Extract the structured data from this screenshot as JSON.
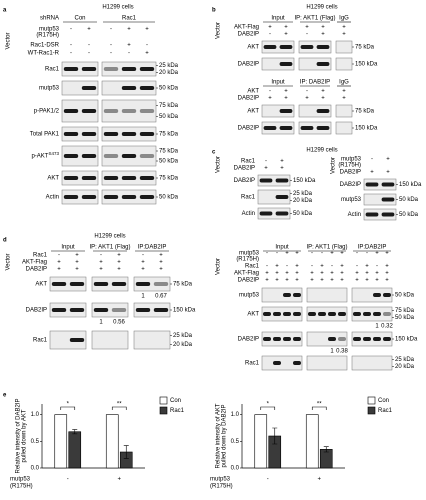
{
  "panels": [
    {
      "label": "a",
      "title": "H1299 cells",
      "vector": "Vector",
      "header": "shRNA",
      "groups": [
        "Con",
        "Rac1"
      ],
      "sign_rows": [
        {
          "name": "mutp53",
          "sub": "(R175H)",
          "signs": [
            "-",
            "+",
            "-",
            "+",
            "+"
          ]
        },
        {
          "name": "Rac1-DSR",
          "signs": [
            "-",
            "-",
            "-",
            "+",
            "-"
          ]
        },
        {
          "name": "WT-Rac1-R",
          "signs": [
            "-",
            "-",
            "-",
            "-",
            "+"
          ]
        }
      ],
      "blots": [
        {
          "name": "Rac1",
          "kda": [
            "25 kDa",
            "20 kDa"
          ]
        },
        {
          "name": "mutp53",
          "kda": [
            "50 kDa"
          ]
        },
        {
          "name": "p-PAK1/2",
          "kda": [
            "75 kDa",
            "50 kDa"
          ]
        },
        {
          "name": "Total PAK1",
          "kda": [
            "75 kDa"
          ]
        },
        {
          "name": "p-AKT",
          "sup": "S473",
          "kda": [
            "75 kDa",
            "50 kDa"
          ]
        },
        {
          "name": "AKT",
          "kda": [
            "75 kDa"
          ]
        },
        {
          "name": "Actin",
          "kda": [
            "50 kDa"
          ]
        }
      ]
    },
    {
      "label": "b",
      "title": "H1299 cells",
      "vector": "Vector",
      "groups": [
        "Input",
        "IP: AKT1 (Flag)",
        "IgG"
      ],
      "sign_rows": [
        {
          "name": "AKT-Flag",
          "signs": [
            "+",
            "+",
            "+",
            "+",
            "+"
          ]
        },
        {
          "name": "DAB2IP",
          "signs": [
            "-",
            "+",
            "-",
            "+",
            "+"
          ]
        }
      ],
      "blots": [
        {
          "name": "AKT",
          "kda": [
            "75 kDa"
          ]
        },
        {
          "name": "DAB2IP",
          "kda": [
            "150 kDa"
          ]
        }
      ]
    },
    {
      "groups": [
        "Input",
        "IP: DAB2IP",
        "IgG"
      ],
      "sign_rows": [
        {
          "name": "AKT",
          "signs": [
            "-",
            "+",
            "-",
            "+",
            "+"
          ]
        },
        {
          "name": "DAB2IP",
          "signs": [
            "+",
            "+",
            "+",
            "+",
            "+"
          ]
        }
      ],
      "blots": [
        {
          "name": "AKT",
          "kda": [
            "75 kDa"
          ]
        },
        {
          "name": "DAB2IP",
          "kda": [
            "150 kDa"
          ]
        }
      ]
    },
    {
      "label": "c",
      "title": "H1299 cells",
      "vector": "Vector",
      "sign_rows": [
        {
          "name": "Rac1",
          "signs": [
            "-",
            "+"
          ]
        },
        {
          "name": "DAB2IP",
          "signs": [
            "+",
            "+"
          ]
        }
      ],
      "blots": [
        {
          "name": "DAB2IP",
          "kda": [
            "150 kDa"
          ]
        },
        {
          "name": "Rac1",
          "kda": [
            "25 kDa",
            "20 kDa"
          ]
        },
        {
          "name": "Actin",
          "kda": [
            "50 kDa"
          ]
        }
      ]
    },
    {
      "vector": "Vector",
      "sign_rows": [
        {
          "name": "mutp53",
          "sub": "(R175H)",
          "signs": [
            "-",
            "+"
          ]
        },
        {
          "name": "DAB2IP",
          "signs": [
            "+",
            "+"
          ]
        }
      ],
      "blots": [
        {
          "name": "DAB2IP",
          "kda": [
            "150 kDa"
          ]
        },
        {
          "name": "mutp53",
          "kda": [
            "50 kDa"
          ]
        },
        {
          "name": "Actin",
          "kda": [
            "50 kDa"
          ]
        }
      ]
    },
    {
      "label": "d",
      "title": "H1299 cells",
      "vector": "Vector",
      "groups": [
        "Input",
        "IP: AKT1 (Flag)",
        "IP:DAB2IP"
      ],
      "sign_rows": [
        {
          "name": "Rac1",
          "signs": [
            "-",
            "+",
            "-",
            "+",
            "-",
            "+"
          ]
        },
        {
          "name": "AKT-Flag",
          "signs": [
            "+",
            "+",
            "+",
            "+",
            "+",
            "+"
          ]
        },
        {
          "name": "DAB2IP",
          "signs": [
            "+",
            "+",
            "+",
            "+",
            "+",
            "+"
          ]
        }
      ],
      "blots": [
        {
          "name": "AKT",
          "kda": [
            "75 kDa"
          ],
          "quant": [
            null,
            null,
            null,
            null,
            1,
            0.67
          ]
        },
        {
          "name": "DAB2IP",
          "kda": [
            "150 kDa"
          ],
          "quant": [
            null,
            null,
            1,
            0.56,
            null,
            null
          ]
        },
        {
          "name": "Rac1",
          "kda": [
            "25 kDa",
            "20 kDa"
          ]
        }
      ]
    },
    {
      "vector": "Vector",
      "groups": [
        "Input",
        "IP: AKT1 (Flag)",
        "IP:DAB2IP"
      ],
      "sign_rows": [
        {
          "name": "mutp53",
          "sub": "(R175H)",
          "signs": [
            "-",
            "-",
            "+",
            "+",
            "-",
            "-",
            "+",
            "+",
            "-",
            "-",
            "+",
            "+"
          ]
        },
        {
          "name": "Rac1",
          "signs": [
            "-",
            "+",
            "-",
            "+",
            "-",
            "+",
            "-",
            "+",
            "-",
            "+",
            "-",
            "+"
          ]
        },
        {
          "name": "AKT-Flag",
          "signs": [
            "+",
            "+",
            "+",
            "+",
            "+",
            "+",
            "+",
            "+",
            "+",
            "+",
            "+",
            "+"
          ]
        },
        {
          "name": "DAB2IP",
          "signs": [
            "+",
            "+",
            "+",
            "+",
            "+",
            "+",
            "+",
            "+",
            "+",
            "+",
            "+",
            "+"
          ]
        }
      ],
      "blots": [
        {
          "name": "mutp53",
          "kda": [
            "50 kDa"
          ]
        },
        {
          "name": "AKT",
          "kda": [
            "75 kDa",
            "50 kDa"
          ],
          "quant": [
            null,
            null,
            null,
            null,
            null,
            null,
            null,
            null,
            null,
            null,
            1,
            0.32
          ]
        },
        {
          "name": "DAB2IP",
          "kda": [
            "150 kDa"
          ],
          "quant": [
            null,
            null,
            null,
            null,
            null,
            null,
            1,
            0.38,
            null,
            null,
            null,
            null
          ]
        },
        {
          "name": "Rac1",
          "kda": [
            "25 kDa",
            "20 kDa"
          ]
        }
      ]
    }
  ],
  "figure_label": "e",
  "chart_data": [
    {
      "type": "bar",
      "y_label": [
        "Relative intensity of DAB2IP",
        "pulled down by AKT"
      ],
      "x_label": [
        "mutp53",
        "(R175H)"
      ],
      "categories": [
        "-",
        "+"
      ],
      "series": [
        {
          "name": "Con",
          "color": "#ffffff",
          "values": [
            1,
            1
          ]
        },
        {
          "name": "Rac1",
          "color": "#3a3a3a",
          "values": [
            0.68,
            0.3
          ],
          "errors": [
            0.04,
            0.12
          ]
        }
      ],
      "annotations": [
        "*",
        "**"
      ],
      "ylim": [
        0,
        1.2
      ],
      "yticks": [
        {
          "value": 0,
          "label": "0.0"
        },
        0.5,
        {
          "value": 1,
          "label": "1.0"
        }
      ]
    },
    {
      "type": "bar",
      "y_label": [
        "Relative intensity of AKT",
        "pulled down by DAB2IP"
      ],
      "x_label": [
        "mutp53",
        "(R175H)"
      ],
      "categories": [
        "-",
        "+"
      ],
      "series": [
        {
          "name": "Con",
          "color": "#ffffff",
          "values": [
            1,
            1
          ]
        },
        {
          "name": "Rac1",
          "color": "#3a3a3a",
          "values": [
            0.6,
            0.35
          ],
          "errors": [
            0.15,
            0.05
          ]
        }
      ],
      "annotations": [
        "*",
        "**"
      ],
      "ylim": [
        0,
        1.2
      ],
      "yticks": [
        {
          "value": 0,
          "label": "0.0"
        },
        0.5,
        {
          "value": 1,
          "label": "1.0"
        }
      ]
    }
  ]
}
